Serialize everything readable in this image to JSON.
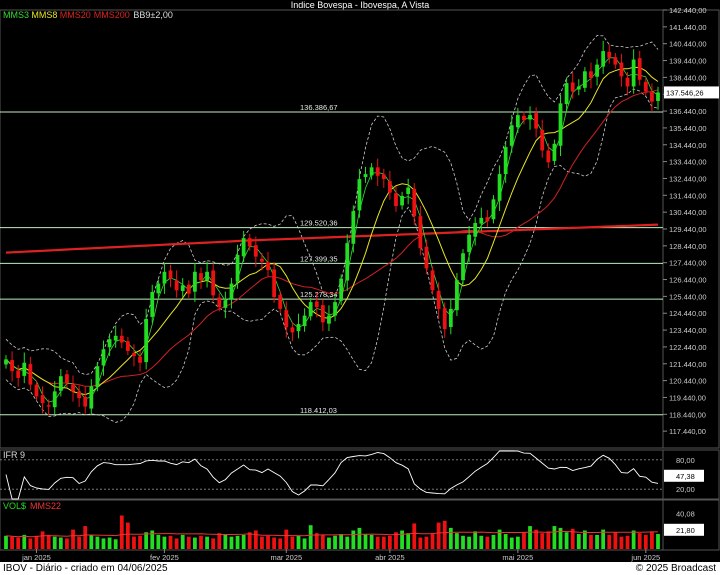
{
  "header": {
    "title": "Indice Bovespa - Ibovespa, A Vista",
    "legend": [
      {
        "label": "MMS3",
        "color": "#33dd33"
      },
      {
        "label": "MMS8",
        "color": "#e6e622"
      },
      {
        "label": "MMS20",
        "color": "#dd2222"
      },
      {
        "label": "MMS200",
        "color": "#dd2222"
      },
      {
        "label": "BB9±2,00",
        "color": "#dddddd"
      }
    ]
  },
  "colors": {
    "up": "#22dd22",
    "down": "#ee1111",
    "mms8": "#e6e622",
    "mms20": "#cc2222",
    "mms200": "#dd2222",
    "band": "#cccccc",
    "level": "#bdeebd",
    "grid": "#333333"
  },
  "chart_data": [
    {
      "type": "candlestick",
      "panel": "price",
      "title": "Indice Bovespa - Ibovespa, A Vista",
      "ylim": [
        116440,
        142440
      ],
      "y_ticks": [
        "142.440,00",
        "141.440,00",
        "140.440,00",
        "139.440,00",
        "138.440,00",
        "137.440,00",
        "136.440,00",
        "135.440,00",
        "134.440,00",
        "133.440,00",
        "132.440,00",
        "131.440,00",
        "130.440,00",
        "129.440,00",
        "128.440,00",
        "127.440,00",
        "126.440,00",
        "125.440,00",
        "124.440,00",
        "123.440,00",
        "122.440,00",
        "121.440,00",
        "120.440,00",
        "119.440,00",
        "118.440,00",
        "117.440,00"
      ],
      "x_labels": [
        {
          "label": "jan 2025",
          "index": 5
        },
        {
          "label": "fev 2025",
          "index": 26
        },
        {
          "label": "mar 2025",
          "index": 46
        },
        {
          "label": "abr 2025",
          "index": 63
        },
        {
          "label": "mai 2025",
          "index": 84
        },
        {
          "label": "jun 2025",
          "index": 105
        }
      ],
      "last_price_label": "137.546,26",
      "last_price": 137546.26,
      "levels": [
        {
          "label": "136.386,67",
          "value": 136386.67
        },
        {
          "label": "129.520,36",
          "value": 129520.36
        },
        {
          "label": "127.399,35",
          "value": 127399.35
        },
        {
          "label": "125.278,34",
          "value": 125278.34
        },
        {
          "label": "118.412,03",
          "value": 118412.03
        }
      ],
      "close": [
        121700,
        121000,
        120600,
        121500,
        120200,
        119500,
        119100,
        118900,
        119800,
        120700,
        120300,
        119800,
        119400,
        118900,
        120100,
        121300,
        122300,
        122900,
        123100,
        122700,
        122200,
        121900,
        121500,
        124100,
        125700,
        126200,
        126900,
        126500,
        125800,
        126100,
        125600,
        126900,
        126400,
        126900,
        125500,
        124800,
        125200,
        126200,
        127900,
        128900,
        128400,
        127800,
        127500,
        127000,
        125400,
        124700,
        123600,
        123300,
        123800,
        124300,
        125100,
        124800,
        123900,
        124300,
        125100,
        126500,
        128600,
        130500,
        132400,
        132700,
        133100,
        132600,
        132400,
        131600,
        130800,
        131400,
        131900,
        130200,
        128300,
        127100,
        125800,
        124700,
        123500,
        124700,
        126400,
        128000,
        129100,
        129800,
        130100,
        129900,
        131200,
        132700,
        134300,
        135600,
        136200,
        135900,
        136200,
        135400,
        134100,
        133400,
        134500,
        136900,
        138100,
        137600,
        137900,
        138800,
        138400,
        139200,
        140000,
        139600,
        139200,
        138500,
        137900,
        139500,
        138300,
        137600,
        137000,
        137546
      ]
    },
    {
      "type": "line",
      "panel": "IFR",
      "title": "IFR 9",
      "ylim": [
        0,
        100
      ],
      "y_ticks": [
        "80,00",
        "20,00"
      ],
      "ref_lines": [
        80,
        20
      ],
      "last_label": "47,38"
    },
    {
      "type": "bar",
      "panel": "volume",
      "title": "VOL$",
      "series_names": [
        "VOL$",
        "MMS22"
      ],
      "y_ticks": [
        "40,08"
      ],
      "last_label": "21,80",
      "values": [
        15,
        14,
        13,
        16,
        12,
        15,
        20,
        16,
        14,
        13,
        12,
        22,
        14,
        26,
        16,
        14,
        12,
        13,
        11,
        38,
        30,
        14,
        15,
        19,
        21,
        16,
        14,
        15,
        12,
        16,
        14,
        13,
        15,
        14,
        12,
        18,
        16,
        14,
        15,
        16,
        19,
        21,
        14,
        15,
        13,
        12,
        22,
        14,
        15,
        12,
        27,
        18,
        16,
        13,
        15,
        17,
        14,
        21,
        24,
        17,
        16,
        14,
        14,
        15,
        19,
        21,
        18,
        29,
        13,
        14,
        18,
        30,
        32,
        24,
        18,
        15,
        14,
        20,
        15,
        14,
        16,
        22,
        17,
        13,
        14,
        19,
        26,
        22,
        18,
        20,
        26,
        24,
        19,
        23,
        17,
        21,
        16,
        16,
        22,
        16,
        19,
        14,
        15,
        21,
        18,
        16,
        20,
        17
      ]
    }
  ],
  "footer": {
    "left": "IBOV - Diário - criado em 04/06/2025",
    "right": "© 2025 Broadcast"
  }
}
